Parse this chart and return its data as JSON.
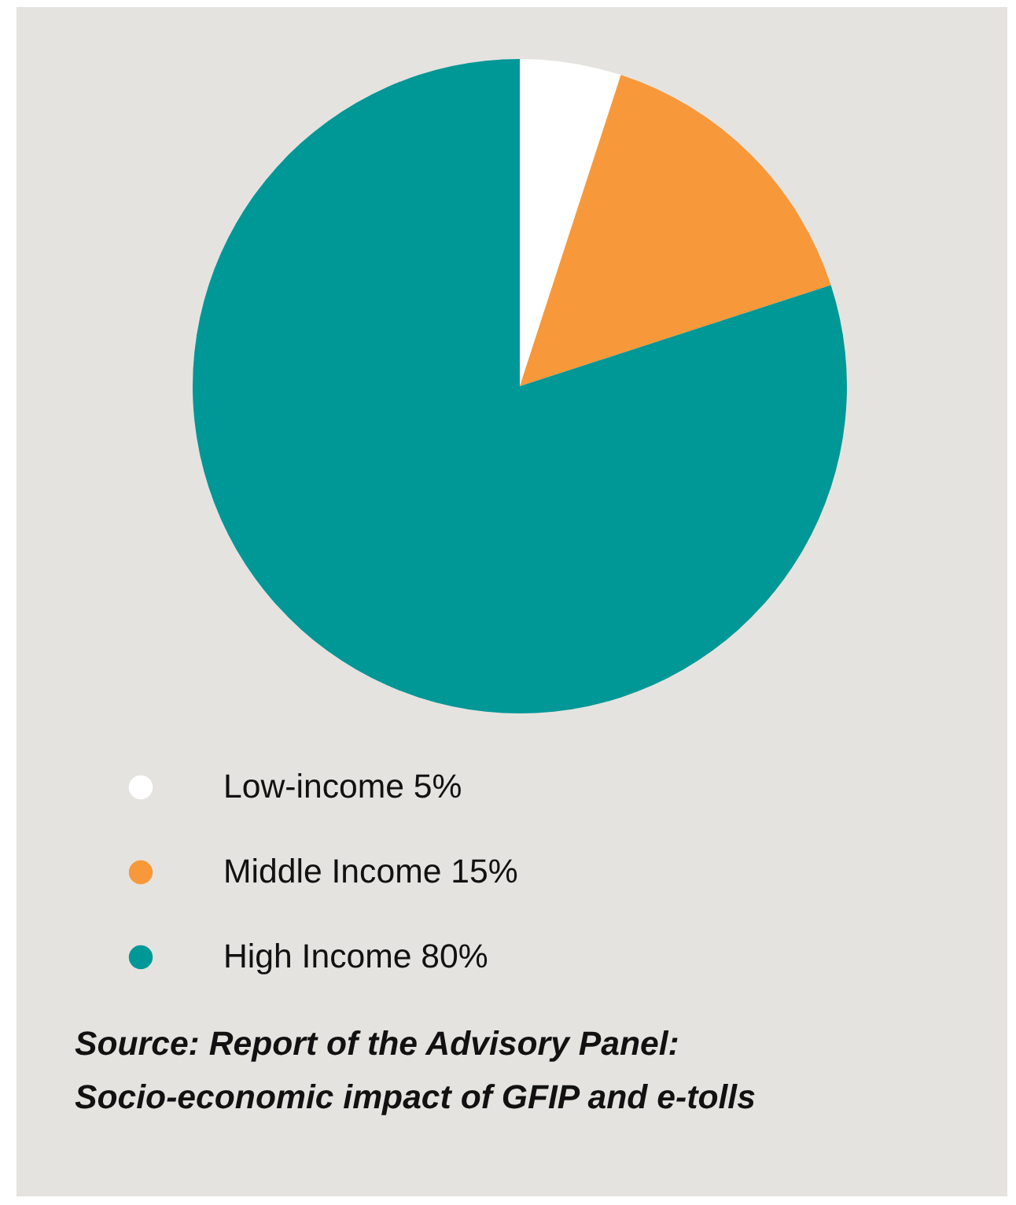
{
  "chart_data": {
    "type": "pie",
    "categories": [
      "Low-income",
      "Middle Income",
      "High Income"
    ],
    "values": [
      5,
      15,
      80
    ],
    "value_labels": [
      "5%",
      "15%",
      "80%"
    ],
    "colors": [
      "#ffffff",
      "#f7993a",
      "#009797"
    ],
    "legend": "bottom",
    "annotations": [
      "Source: Report of the Advisory Panel:\nSocio-economic impact of GFIP and e-tolls"
    ]
  }
}
